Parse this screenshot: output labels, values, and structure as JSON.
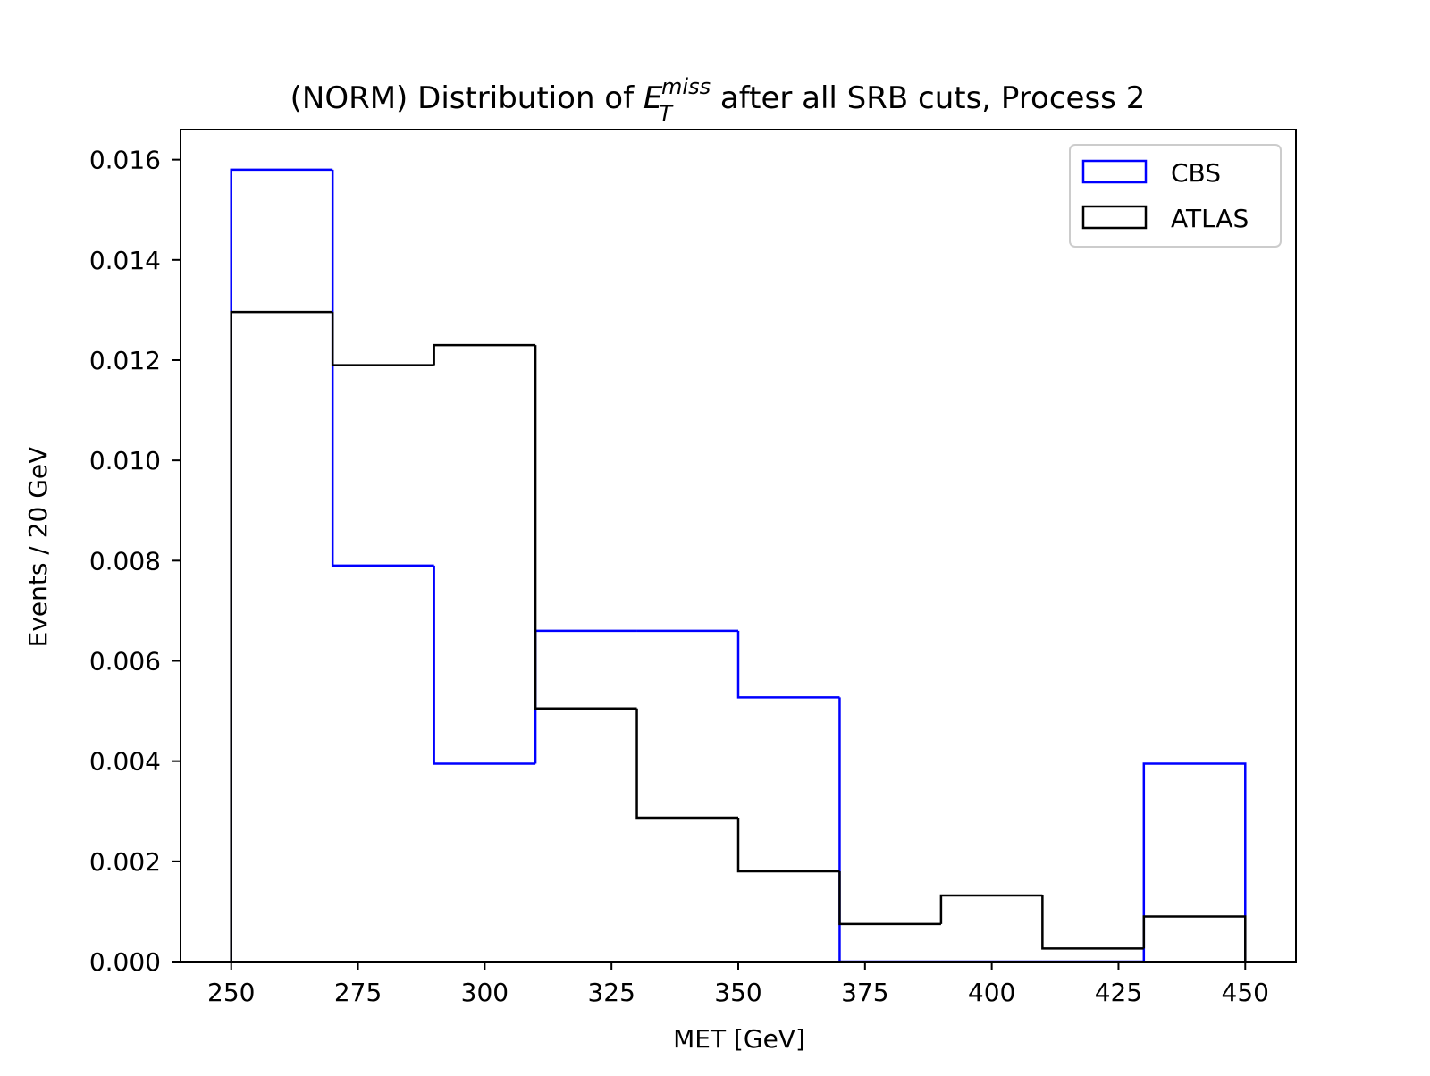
{
  "chart_data": {
    "type": "histogram",
    "title": {
      "prefix": "(NORM) Distribution of ",
      "symbol_base": "E",
      "symbol_sub": "T",
      "symbol_sup": "miss",
      "suffix": " after all SRB cuts, Process 2"
    },
    "xlabel": "MET [GeV]",
    "ylabel": "Events / 20 GeV",
    "xlim": [
      240,
      460
    ],
    "ylim": [
      0,
      0.0166
    ],
    "xticks": [
      250,
      275,
      300,
      325,
      350,
      375,
      400,
      425,
      450
    ],
    "xtick_labels": [
      "250",
      "275",
      "300",
      "325",
      "350",
      "375",
      "400",
      "425",
      "450"
    ],
    "yticks": [
      0,
      0.002,
      0.004,
      0.006,
      0.008,
      0.01,
      0.012,
      0.014,
      0.016
    ],
    "ytick_labels": [
      "0.000",
      "0.002",
      "0.004",
      "0.006",
      "0.008",
      "0.010",
      "0.012",
      "0.014",
      "0.016"
    ],
    "bin_edges": [
      250,
      270,
      290,
      310,
      330,
      350,
      370,
      390,
      410,
      430,
      450
    ],
    "series": [
      {
        "name": "CBS",
        "color": "#0000ff",
        "values": [
          0.0158,
          0.0079,
          0.00395,
          0.0066,
          0.0066,
          0.00527,
          0,
          0,
          0,
          0.00395
        ]
      },
      {
        "name": "ATLAS",
        "color": "#000000",
        "values": [
          0.01296,
          0.0119,
          0.0123,
          0.00505,
          0.00287,
          0.0018,
          0.00075,
          0.00132,
          0.00026,
          0.0009
        ]
      }
    ],
    "legend_position": "top-right",
    "grid": false
  }
}
